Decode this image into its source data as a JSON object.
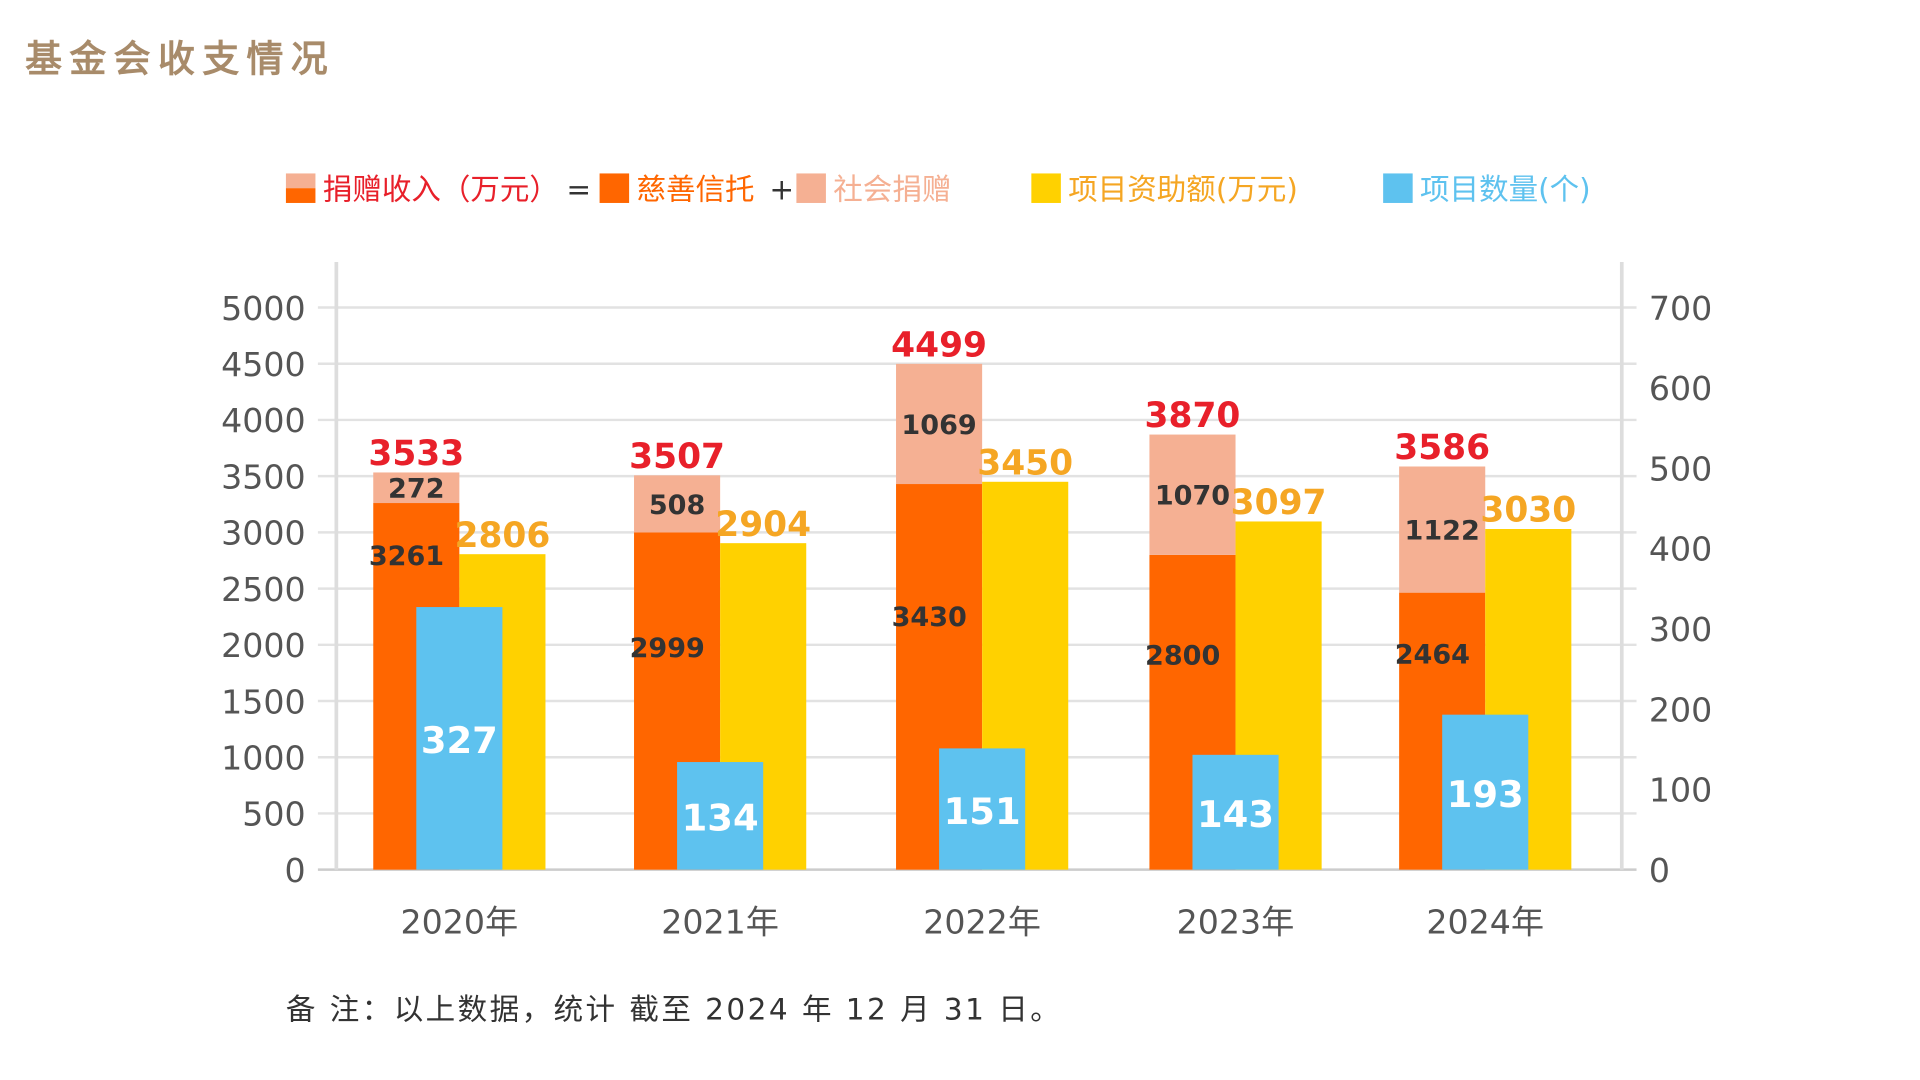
{
  "title": "基金会收支情况",
  "legend": {
    "income": "捐赠收入（万元）",
    "eq": "=",
    "trust": "慈善信托",
    "plus": "+",
    "social": "社会捐赠",
    "grant": "项目资助额(万元)",
    "count": "项目数量(个)"
  },
  "note": "备 注：以上数据，统计 截至 2024 年 12 月 31 日。",
  "colors": {
    "trust": "#FF6600",
    "social": "#F5B093",
    "grant": "#FFD100",
    "count": "#5EC2EF",
    "total_label": "#E8202A",
    "grant_label": "#F5A623",
    "title": "#A88B6A"
  },
  "chart_data": {
    "type": "bar",
    "categories": [
      "2020年",
      "2021年",
      "2022年",
      "2023年",
      "2024年"
    ],
    "left_axis": {
      "range": [
        0,
        5000
      ],
      "ticks": [
        "0",
        "500",
        "1000",
        "1500",
        "2000",
        "2500",
        "3000",
        "3500",
        "4000",
        "4500",
        "5000"
      ]
    },
    "right_axis": {
      "range": [
        0,
        700
      ],
      "ticks": [
        "0",
        "100",
        "200",
        "300",
        "400",
        "500",
        "600",
        "700"
      ]
    },
    "grid": true,
    "legend_position": "top",
    "series": [
      {
        "name": "慈善信托",
        "axis": "left",
        "stack": "income",
        "values": [
          3261,
          2999,
          3430,
          2800,
          2464
        ]
      },
      {
        "name": "社会捐赠",
        "axis": "left",
        "stack": "income",
        "values": [
          272,
          508,
          1069,
          1070,
          1122
        ]
      },
      {
        "name": "捐赠收入（万元）",
        "role": "stack-total",
        "values": [
          3533,
          3507,
          4499,
          3870,
          3586
        ]
      },
      {
        "name": "项目资助额(万元)",
        "axis": "left",
        "values": [
          2806,
          2904,
          3450,
          3097,
          3030
        ]
      },
      {
        "name": "项目数量(个)",
        "axis": "right",
        "values": [
          327,
          134,
          151,
          143,
          193
        ]
      }
    ]
  }
}
